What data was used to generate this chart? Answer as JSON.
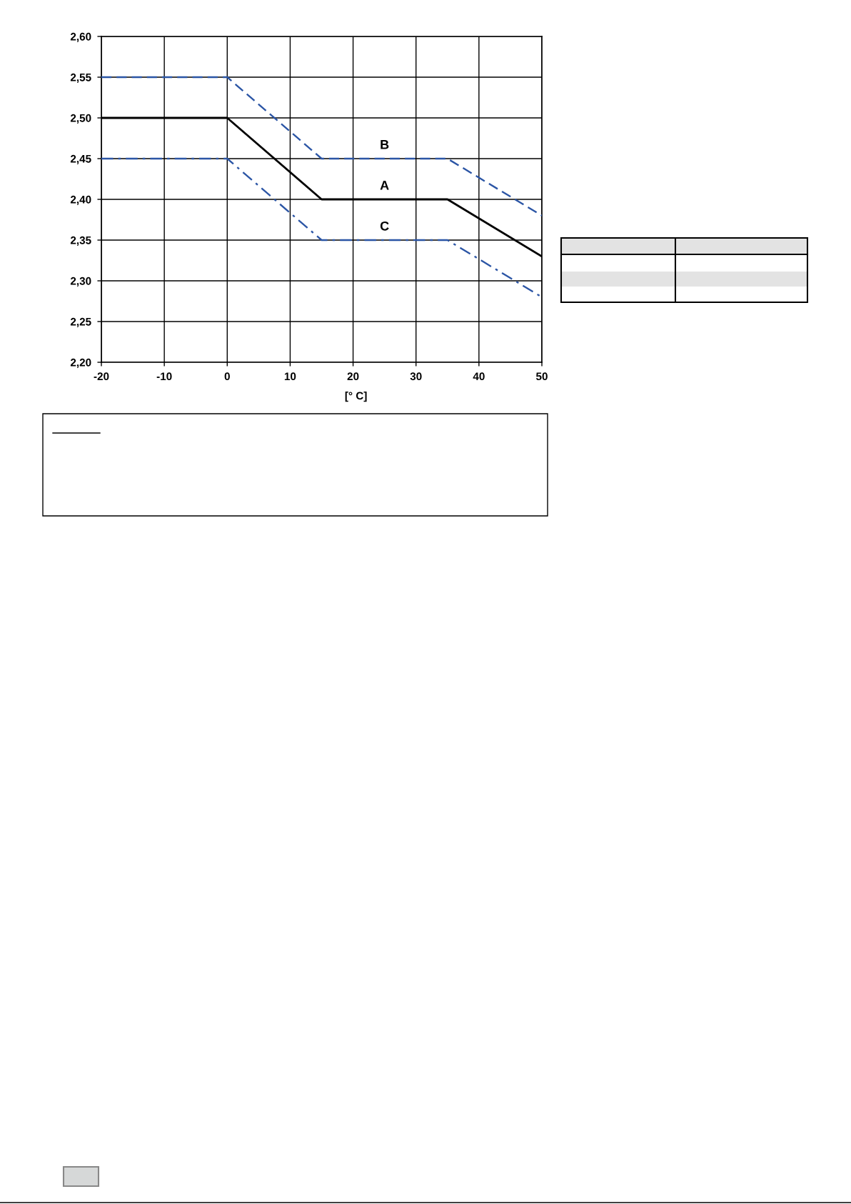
{
  "chart_data": {
    "type": "line",
    "xlabel": "[° C]",
    "x": [
      -20,
      0,
      15,
      35,
      50
    ],
    "xlim": [
      -20,
      50
    ],
    "xticks": [
      -20,
      -10,
      0,
      10,
      20,
      30,
      40,
      50
    ],
    "ylim": [
      2.2,
      2.6
    ],
    "yticks": [
      {
        "value": 2.2,
        "label": "2,20"
      },
      {
        "value": 2.25,
        "label": "2,25"
      },
      {
        "value": 2.3,
        "label": "2,30"
      },
      {
        "value": 2.35,
        "label": "2,35"
      },
      {
        "value": 2.4,
        "label": "2,40"
      },
      {
        "value": 2.45,
        "label": "2,45"
      },
      {
        "value": 2.5,
        "label": "2,50"
      },
      {
        "value": 2.55,
        "label": "2,55"
      },
      {
        "value": 2.6,
        "label": "2,60"
      }
    ],
    "grid": true,
    "series": [
      {
        "name": "A",
        "color": "#000000",
        "line_style": "solid",
        "values": [
          2.5,
          2.5,
          2.4,
          2.4,
          2.33
        ]
      },
      {
        "name": "B",
        "color": "#2b55a5",
        "line_style": "dashed",
        "values": [
          2.55,
          2.55,
          2.45,
          2.45,
          2.38
        ]
      },
      {
        "name": "C",
        "color": "#2b55a5",
        "line_style": "dashdot",
        "values": [
          2.45,
          2.45,
          2.35,
          2.35,
          2.28
        ]
      }
    ]
  }
}
